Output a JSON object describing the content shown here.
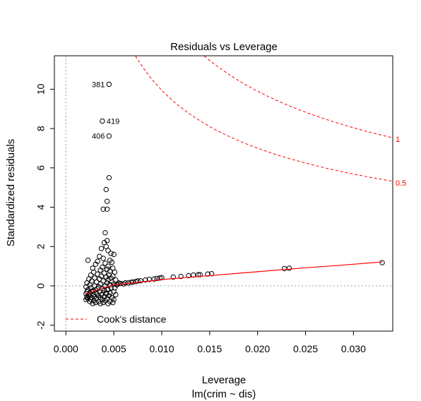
{
  "chart_data": {
    "type": "scatter",
    "title": "Residuals vs Leverage",
    "xlabel": "Leverage",
    "sublabel": "lm(crim ~ dis)",
    "ylabel": "Standardized residuals",
    "xlim": [
      -0.0012,
      0.0341
    ],
    "ylim": [
      -2.3,
      11.7
    ],
    "x_ticks": [
      0.0,
      0.005,
      0.01,
      0.015,
      0.02,
      0.025,
      0.03
    ],
    "x_tick_labels": [
      "0.000",
      "0.005",
      "0.010",
      "0.015",
      "0.020",
      "0.025",
      "0.030"
    ],
    "y_ticks": [
      -2,
      0,
      2,
      4,
      6,
      8,
      10
    ],
    "y_tick_labels": [
      "-2",
      "0",
      "2",
      "4",
      "6",
      "8",
      "10"
    ],
    "legend": {
      "label": "Cook's distance",
      "position": "bottom-left"
    },
    "contour_labels": [
      "1",
      "0.5"
    ],
    "colors": {
      "points": "#000000",
      "smoother": "#ff0000",
      "cook": "#ff0000",
      "reference": "#9e9e9e",
      "axes": "#000000"
    },
    "labeled_points": [
      {
        "label": "381",
        "x": 0.0045,
        "y": 10.25
      },
      {
        "label": "419",
        "x": 0.0038,
        "y": 8.38
      },
      {
        "label": "406",
        "x": 0.0045,
        "y": 7.62
      }
    ],
    "points": [
      [
        0.0045,
        5.5
      ],
      [
        0.0042,
        4.9
      ],
      [
        0.0039,
        3.9
      ],
      [
        0.0043,
        3.9
      ],
      [
        0.0043,
        4.3
      ],
      [
        0.0041,
        2.7
      ],
      [
        0.0043,
        2.3
      ],
      [
        0.004,
        2.2
      ],
      [
        0.0042,
        2.0
      ],
      [
        0.0037,
        1.9
      ],
      [
        0.0044,
        1.8
      ],
      [
        0.0047,
        1.65
      ],
      [
        0.005,
        1.6
      ],
      [
        0.0035,
        1.5
      ],
      [
        0.0039,
        1.4
      ],
      [
        0.0046,
        1.3
      ],
      [
        0.0023,
        1.3
      ],
      [
        0.0033,
        1.25
      ],
      [
        0.0048,
        1.2
      ],
      [
        0.0041,
        1.15
      ],
      [
        0.0031,
        1.1
      ],
      [
        0.0044,
        1.0
      ],
      [
        0.0038,
        0.95
      ],
      [
        0.0028,
        0.9
      ],
      [
        0.0049,
        0.9
      ],
      [
        0.0043,
        0.85
      ],
      [
        0.0036,
        0.8
      ],
      [
        0.0046,
        0.75
      ],
      [
        0.0029,
        0.7
      ],
      [
        0.0051,
        0.7
      ],
      [
        0.004,
        0.65
      ],
      [
        0.0033,
        0.6
      ],
      [
        0.0045,
        0.55
      ],
      [
        0.0026,
        0.55
      ],
      [
        0.0049,
        0.5
      ],
      [
        0.0037,
        0.5
      ],
      [
        0.0042,
        0.45
      ],
      [
        0.003,
        0.4
      ],
      [
        0.0047,
        0.4
      ],
      [
        0.0024,
        0.35
      ],
      [
        0.0035,
        0.35
      ],
      [
        0.0044,
        0.3
      ],
      [
        0.0052,
        0.3
      ],
      [
        0.0027,
        0.25
      ],
      [
        0.0039,
        0.25
      ],
      [
        0.0048,
        0.2
      ],
      [
        0.0032,
        0.2
      ],
      [
        0.0022,
        0.15
      ],
      [
        0.0043,
        0.15
      ],
      [
        0.005,
        0.1
      ],
      [
        0.0036,
        0.1
      ],
      [
        0.0025,
        0.05
      ],
      [
        0.0046,
        0.05
      ],
      [
        0.003,
        0.0
      ],
      [
        0.0041,
        0.0
      ],
      [
        0.0053,
        0.05
      ],
      [
        0.0021,
        -0.05
      ],
      [
        0.0034,
        -0.05
      ],
      [
        0.0047,
        -0.1
      ],
      [
        0.0026,
        -0.1
      ],
      [
        0.0038,
        -0.15
      ],
      [
        0.0051,
        -0.1
      ],
      [
        0.0023,
        -0.2
      ],
      [
        0.0031,
        -0.2
      ],
      [
        0.0044,
        -0.2
      ],
      [
        0.0028,
        -0.25
      ],
      [
        0.004,
        -0.25
      ],
      [
        0.005,
        -0.3
      ],
      [
        0.0022,
        -0.3
      ],
      [
        0.0035,
        -0.3
      ],
      [
        0.0025,
        -0.35
      ],
      [
        0.0046,
        -0.35
      ],
      [
        0.0032,
        -0.4
      ],
      [
        0.0021,
        -0.4
      ],
      [
        0.0042,
        -0.4
      ],
      [
        0.0029,
        -0.45
      ],
      [
        0.0037,
        -0.45
      ],
      [
        0.0052,
        -0.45
      ],
      [
        0.0024,
        -0.5
      ],
      [
        0.0034,
        -0.5
      ],
      [
        0.0045,
        -0.5
      ],
      [
        0.0022,
        -0.55
      ],
      [
        0.003,
        -0.55
      ],
      [
        0.004,
        -0.55
      ],
      [
        0.0027,
        -0.6
      ],
      [
        0.0048,
        -0.6
      ],
      [
        0.0036,
        -0.6
      ],
      [
        0.0023,
        -0.65
      ],
      [
        0.0032,
        -0.65
      ],
      [
        0.0043,
        -0.65
      ],
      [
        0.0026,
        -0.7
      ],
      [
        0.0038,
        -0.7
      ],
      [
        0.005,
        -0.7
      ],
      [
        0.0021,
        -0.7
      ],
      [
        0.0029,
        -0.75
      ],
      [
        0.0041,
        -0.75
      ],
      [
        0.0034,
        -0.8
      ],
      [
        0.0046,
        -0.8
      ],
      [
        0.0025,
        -0.8
      ],
      [
        0.0039,
        -0.85
      ],
      [
        0.0031,
        -0.85
      ],
      [
        0.0044,
        -0.9
      ],
      [
        0.0036,
        -0.9
      ],
      [
        0.0028,
        -0.9
      ],
      [
        0.0049,
        -0.85
      ],
      [
        0.0022,
        -0.6
      ],
      [
        0.0024,
        -0.45
      ],
      [
        0.0027,
        -0.3
      ],
      [
        0.0033,
        -0.15
      ],
      [
        0.0042,
        -0.35
      ],
      [
        0.0054,
        0.1
      ],
      [
        0.0055,
        0.15
      ],
      [
        0.0057,
        0.12
      ],
      [
        0.006,
        0.1
      ],
      [
        0.0062,
        0.15
      ],
      [
        0.0065,
        0.15
      ],
      [
        0.0068,
        0.18
      ],
      [
        0.007,
        0.2
      ],
      [
        0.0073,
        0.22
      ],
      [
        0.0075,
        0.25
      ],
      [
        0.0078,
        0.26
      ],
      [
        0.0083,
        0.3
      ],
      [
        0.0087,
        0.33
      ],
      [
        0.0092,
        0.35
      ],
      [
        0.0095,
        0.38
      ],
      [
        0.0098,
        0.4
      ],
      [
        0.01,
        0.42
      ],
      [
        0.0112,
        0.45
      ],
      [
        0.012,
        0.48
      ],
      [
        0.0128,
        0.52
      ],
      [
        0.0133,
        0.55
      ],
      [
        0.0138,
        0.57
      ],
      [
        0.014,
        0.57
      ],
      [
        0.0148,
        0.6
      ],
      [
        0.0152,
        0.62
      ],
      [
        0.0228,
        0.88
      ],
      [
        0.0233,
        0.9
      ],
      [
        0.033,
        1.18
      ]
    ],
    "smoother": [
      [
        0.0021,
        -0.4
      ],
      [
        0.003,
        -0.25
      ],
      [
        0.004,
        -0.08
      ],
      [
        0.005,
        0.05
      ],
      [
        0.007,
        0.15
      ],
      [
        0.01,
        0.32
      ],
      [
        0.015,
        0.52
      ],
      [
        0.02,
        0.72
      ],
      [
        0.025,
        0.92
      ],
      [
        0.03,
        1.1
      ],
      [
        0.033,
        1.22
      ]
    ]
  }
}
